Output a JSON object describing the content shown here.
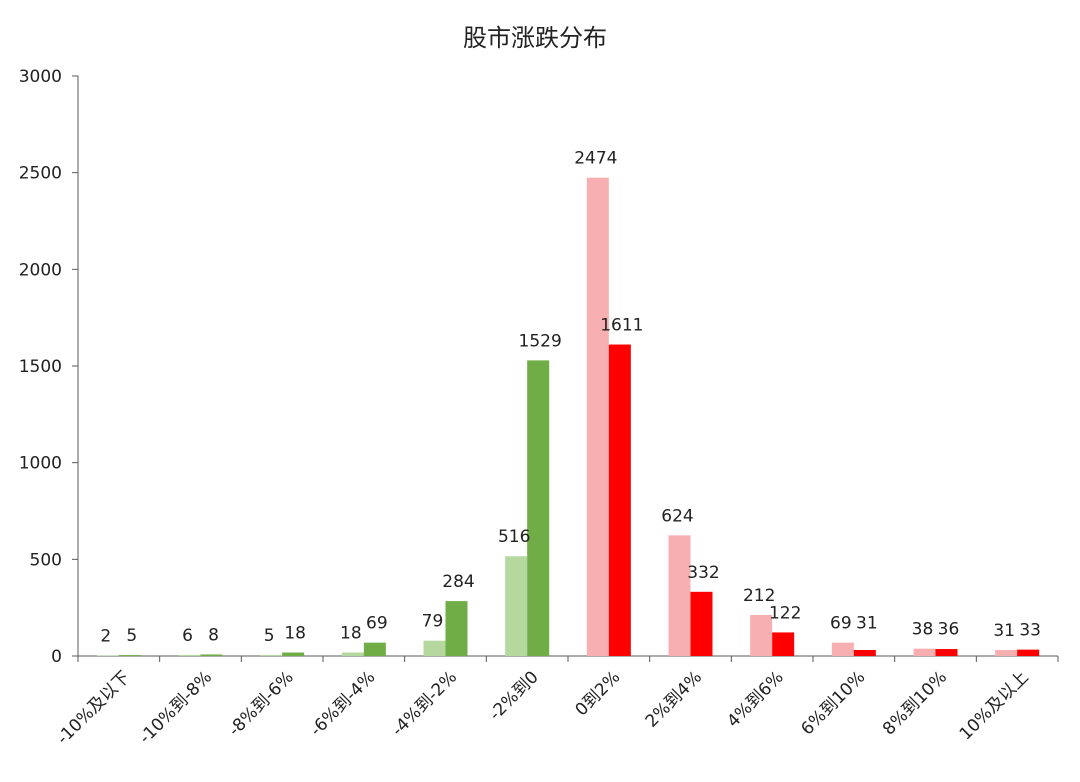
{
  "chart_data": {
    "type": "bar",
    "title": "股市涨跌分布",
    "xlabel": "",
    "ylabel": "",
    "ylim": [
      0,
      3000
    ],
    "yticks": [
      0,
      500,
      1000,
      1500,
      2000,
      2500,
      3000
    ],
    "grid": false,
    "legend": "none",
    "categories": [
      "-10%及以下",
      "-10%到-8%",
      "-8%到-6%",
      "-6%到-4%",
      "-4%到-2%",
      "-2%到0",
      "0到2%",
      "2%到4%",
      "4%到6%",
      "6%到10%",
      "8%到10%",
      "10%及以上"
    ],
    "series": [
      {
        "values": [
          2,
          6,
          5,
          18,
          79,
          516,
          2474,
          624,
          212,
          69,
          38,
          31
        ]
      },
      {
        "values": [
          5,
          8,
          18,
          69,
          284,
          1529,
          1611,
          332,
          122,
          31,
          36,
          33
        ]
      }
    ],
    "colors": {
      "down_light": "#b5d89f",
      "down_dark": "#70ad47",
      "up_light": "#f7afb1",
      "up_dark": "#ff0000",
      "axis": "#595959"
    }
  }
}
